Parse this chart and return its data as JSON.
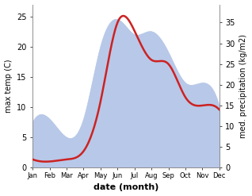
{
  "months": [
    "Jan",
    "Feb",
    "Mar",
    "Apr",
    "May",
    "Jun",
    "Jul",
    "Aug",
    "Sep",
    "Oct",
    "Nov",
    "Dec"
  ],
  "max_temp": [
    7.5,
    8.0,
    5.0,
    8.0,
    20.0,
    24.5,
    22.0,
    22.5,
    19.0,
    14.0,
    14.0,
    10.0
  ],
  "precipitation": [
    2.0,
    1.5,
    2.0,
    4.0,
    16.0,
    35.0,
    33.0,
    26.0,
    25.0,
    17.0,
    15.0,
    14.0
  ],
  "temp_fill_color": "#b8c8e8",
  "precip_color": "#cc2222",
  "temp_ylim": [
    0,
    27
  ],
  "precip_ylim": [
    0,
    39.375
  ],
  "temp_yticks": [
    0,
    5,
    10,
    15,
    20,
    25
  ],
  "precip_yticks": [
    0,
    5,
    10,
    15,
    20,
    25,
    30,
    35
  ],
  "xlabel": "date (month)",
  "ylabel_left": "max temp (C)",
  "ylabel_right": "med. precipitation (kg/m2)",
  "background_color": "#ffffff"
}
